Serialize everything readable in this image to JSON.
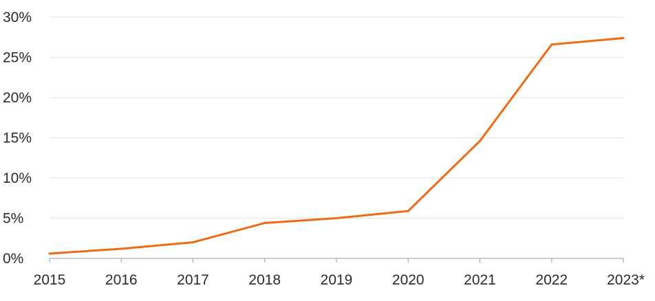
{
  "chart_data": {
    "type": "line",
    "title": "",
    "xlabel": "",
    "ylabel": "",
    "categories": [
      "2015",
      "2016",
      "2017",
      "2018",
      "2019",
      "2020",
      "2021",
      "2022",
      "2023*"
    ],
    "series": [
      {
        "values": [
          0.6,
          1.2,
          2.0,
          4.4,
          5.0,
          5.9,
          14.6,
          26.6,
          27.4
        ],
        "color": "#ee6a14"
      }
    ],
    "ylim": [
      0,
      30
    ],
    "yticks": [
      0,
      5,
      10,
      15,
      20,
      25,
      30
    ],
    "ytick_labels": [
      "0%",
      "5%",
      "10%",
      "15%",
      "20%",
      "25%",
      "30%"
    ],
    "grid": "horizontal",
    "legend": "none"
  }
}
